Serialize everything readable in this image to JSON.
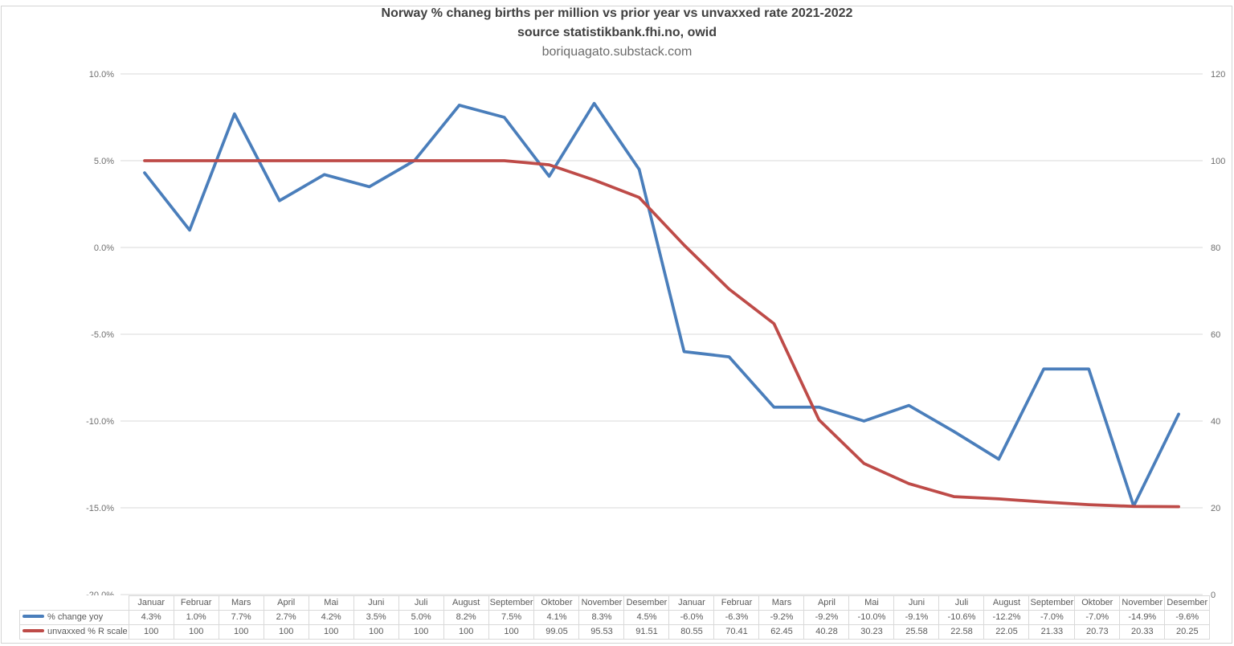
{
  "chart_data": {
    "type": "line",
    "title": "Norway % chaneg births per million vs prior year vs unvaxxed rate 2021-2022",
    "subtitle": "source statistikbank.fhi.no, owid",
    "watermark": "boriquagato.substack.com",
    "grid": true,
    "legend_position": "table-left",
    "categories": [
      "Januar",
      "Februar",
      "Mars",
      "April",
      "Mai",
      "Juni",
      "Juli",
      "August",
      "September",
      "Oktober",
      "November",
      "Desember",
      "Januar",
      "Februar",
      "Mars",
      "April",
      "Mai",
      "Juni",
      "Juli",
      "August",
      "September",
      "Oktober",
      "November",
      "Desember"
    ],
    "series": [
      {
        "name": "% change yoy",
        "axis": "left",
        "color": "#4A7EBB",
        "values": [
          4.3,
          1.0,
          7.7,
          2.7,
          4.2,
          3.5,
          5.0,
          8.2,
          7.5,
          4.1,
          8.3,
          4.5,
          -6.0,
          -6.3,
          -9.2,
          -9.2,
          -10.0,
          -9.1,
          -10.6,
          -12.2,
          -7.0,
          -7.0,
          -14.9,
          -9.6
        ],
        "display_values": [
          "4.3%",
          "1.0%",
          "7.7%",
          "2.7%",
          "4.2%",
          "3.5%",
          "5.0%",
          "8.2%",
          "7.5%",
          "4.1%",
          "8.3%",
          "4.5%",
          "-6.0%",
          "-6.3%",
          "-9.2%",
          "-9.2%",
          "-10.0%",
          "-9.1%",
          "-10.6%",
          "-12.2%",
          "-7.0%",
          "-7.0%",
          "-14.9%",
          "-9.6%"
        ]
      },
      {
        "name": "unvaxxed % R scale",
        "axis": "right",
        "color": "#BE4B48",
        "values": [
          100,
          100,
          100,
          100,
          100,
          100,
          100,
          100,
          100,
          99.05,
          95.53,
          91.51,
          80.55,
          70.41,
          62.45,
          40.28,
          30.23,
          25.58,
          22.58,
          22.05,
          21.33,
          20.73,
          20.33,
          20.25
        ],
        "display_values": [
          "100",
          "100",
          "100",
          "100",
          "100",
          "100",
          "100",
          "100",
          "100",
          "99.05",
          "95.53",
          "91.51",
          "80.55",
          "70.41",
          "62.45",
          "40.28",
          "30.23",
          "25.58",
          "22.58",
          "22.05",
          "21.33",
          "20.73",
          "20.33",
          "20.25"
        ]
      }
    ],
    "left_axis": {
      "min": -20,
      "max": 10,
      "tick_step": 5,
      "tick_labels": [
        "10.0%",
        "5.0%",
        "0.0%",
        "-5.0%",
        "-10.0%",
        "-15.0%",
        "-20.0%"
      ]
    },
    "right_axis": {
      "min": 0,
      "max": 120,
      "tick_step": 20,
      "tick_labels": [
        "120",
        "100",
        "80",
        "60",
        "40",
        "20",
        "0"
      ]
    },
    "colors": {
      "gridline": "#d9d9d9",
      "axis_text": "#6e6e6e",
      "table_border": "#d9d9d9",
      "table_text": "#595959",
      "title_text": "#404040"
    }
  }
}
